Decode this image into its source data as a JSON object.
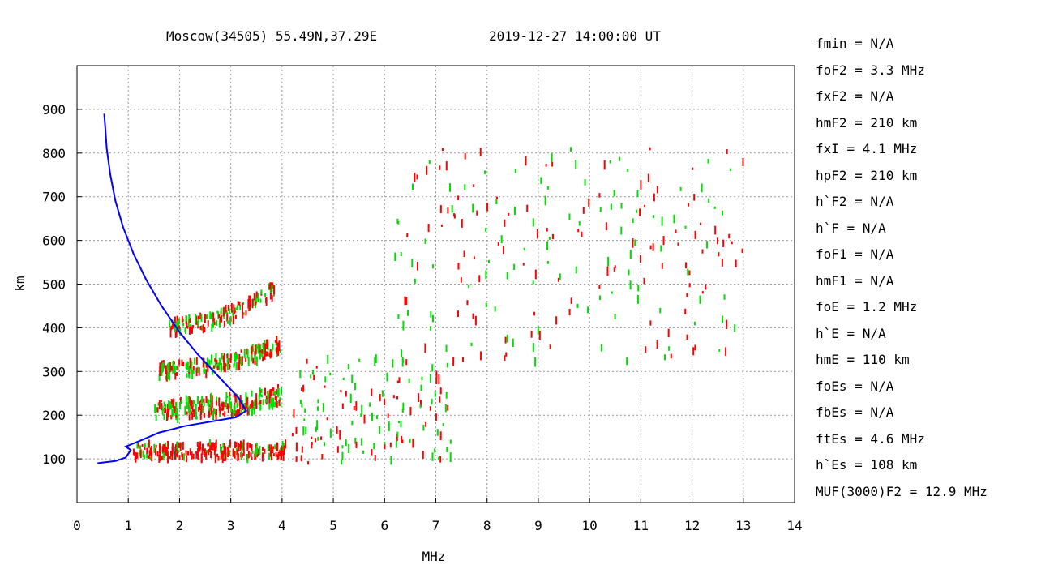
{
  "header": {
    "station": "Moscow(34505) 55.49N,37.29E",
    "timestamp": "2019-12-27 14:00:00 UT"
  },
  "parameters": [
    "fmin = N/A",
    "foF2 = 3.3 MHz",
    "fxF2 = N/A",
    "hmF2 = 210 km",
    "fxI = 4.1 MHz",
    "hpF2 = 210 km",
    "h`F2 = N/A",
    "h`F = N/A",
    "foF1 = N/A",
    "hmF1 = N/A",
    "foE = 1.2 MHz",
    "h`E = N/A",
    "hmE = 110 km",
    "foEs = N/A",
    "fbEs = N/A",
    "ftEs = 4.6 MHz",
    "h`Es = 108 km",
    "MUF(3000)F2 = 12.9 MHz"
  ],
  "chart_data": {
    "type": "scatter",
    "xlabel": "MHz",
    "ylabel": "km",
    "xlim": [
      0,
      14
    ],
    "ylim": [
      0,
      1000
    ],
    "xticks": [
      "0",
      "1",
      "2",
      "3",
      "4",
      "5",
      "6",
      "7",
      "8",
      "9",
      "10",
      "11",
      "12",
      "13",
      "14"
    ],
    "yticks": [
      "100",
      "200",
      "300",
      "400",
      "500",
      "600",
      "700",
      "800",
      "900"
    ],
    "ytick_values": [
      100,
      200,
      300,
      400,
      500,
      600,
      700,
      800,
      900
    ],
    "grid": true,
    "colors": {
      "profile": "#0000ff",
      "o_trace": "#ff0000",
      "x_trace": "#00dd00",
      "grid": "#999999",
      "frame": "#000000"
    },
    "profile": {
      "name": "",
      "x": [
        0.4,
        0.75,
        0.95,
        1.05,
        0.95,
        1.2,
        1.6,
        2.1,
        2.6,
        3.1,
        3.3,
        3.15,
        2.75,
        2.35,
        2.0,
        1.65,
        1.35,
        1.1,
        0.9,
        0.75,
        0.65,
        0.58,
        0.55,
        0.53
      ],
      "y": [
        90,
        95,
        103,
        120,
        128,
        140,
        160,
        175,
        185,
        195,
        210,
        240,
        290,
        340,
        390,
        450,
        510,
        570,
        630,
        690,
        750,
        810,
        860,
        890
      ]
    },
    "traces": [
      {
        "name": "E-layer echo",
        "color": "o_trace",
        "xrange": [
          1.1,
          4.1
        ],
        "yrange": [
          100,
          135
        ],
        "slope": 0,
        "density": 240
      },
      {
        "name": "F 1st hop",
        "color": "mixed",
        "xrange": [
          1.5,
          4.0
        ],
        "yrange": [
          190,
          235
        ],
        "slope": 30,
        "density": 260
      },
      {
        "name": "F 2nd hop",
        "color": "mixed",
        "xrange": [
          1.6,
          4.0
        ],
        "yrange": [
          285,
          320
        ],
        "slope": 60,
        "density": 200
      },
      {
        "name": "F 3rd hop",
        "color": "mixed",
        "xrange": [
          1.8,
          3.9
        ],
        "yrange": [
          385,
          420
        ],
        "slope": 90,
        "density": 150
      },
      {
        "name": "Es scatter",
        "color": "mixed",
        "xrange": [
          4.2,
          7.3
        ],
        "yrange": [
          90,
          330
        ],
        "slope": 0,
        "density": 140
      },
      {
        "name": "Upper scatter",
        "color": "mixed",
        "xrange": [
          6.2,
          13.0
        ],
        "yrange": [
          320,
          810
        ],
        "slope": 0,
        "density": 230
      }
    ]
  }
}
